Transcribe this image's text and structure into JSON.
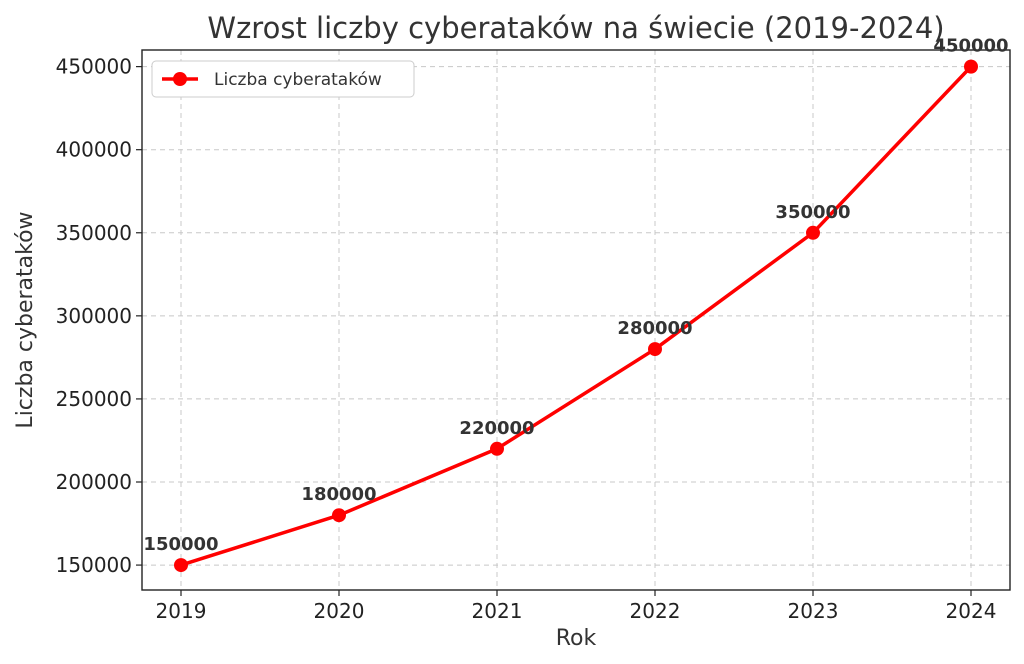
{
  "chart_data": {
    "type": "line",
    "title": "Wzrost liczby cyberataków na świecie (2019-2024)",
    "xlabel": "Rok",
    "ylabel": "Liczba cyberataków",
    "categories": [
      "2019",
      "2020",
      "2021",
      "2022",
      "2023",
      "2024"
    ],
    "series": [
      {
        "name": "Liczba cyberataków",
        "values": [
          150000,
          180000,
          220000,
          280000,
          350000,
          450000
        ],
        "color": "#ff0000",
        "marker": "circle"
      }
    ],
    "data_labels": [
      "150000",
      "180000",
      "220000",
      "280000",
      "350000",
      "450000"
    ],
    "yticks": [
      150000,
      200000,
      250000,
      300000,
      350000,
      400000,
      450000
    ],
    "ylim": [
      135000,
      460000
    ],
    "grid": true,
    "legend_position": "top-left"
  }
}
